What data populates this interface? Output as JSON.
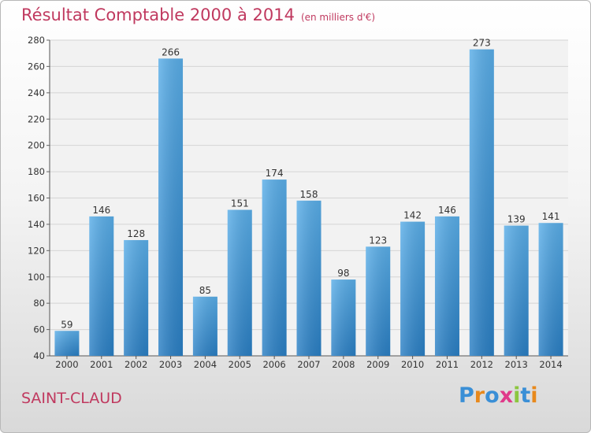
{
  "header": {
    "title": "Résultat Comptable 2000 à 2014",
    "unit": "(en milliers d'€)"
  },
  "footer": {
    "commune": "SAINT-CLAUD",
    "logo": "Proxiti"
  },
  "colors": {
    "bar_light": "#5aaee8",
    "bar_dark": "#2a7fc4",
    "title": "#c0395f"
  },
  "chart_data": {
    "type": "bar",
    "title": "Résultat Comptable 2000 à 2014",
    "categories": [
      "2000",
      "2001",
      "2002",
      "2003",
      "2004",
      "2005",
      "2006",
      "2007",
      "2008",
      "2009",
      "2010",
      "2011",
      "2012",
      "2013",
      "2014"
    ],
    "values": [
      59,
      146,
      128,
      266,
      85,
      151,
      174,
      158,
      98,
      123,
      142,
      146,
      273,
      139,
      141
    ],
    "ylim": [
      40,
      280
    ],
    "yticks": [
      40,
      60,
      80,
      100,
      120,
      140,
      160,
      180,
      200,
      220,
      240,
      260,
      280
    ],
    "grid": true,
    "xlabel": "",
    "ylabel": ""
  }
}
